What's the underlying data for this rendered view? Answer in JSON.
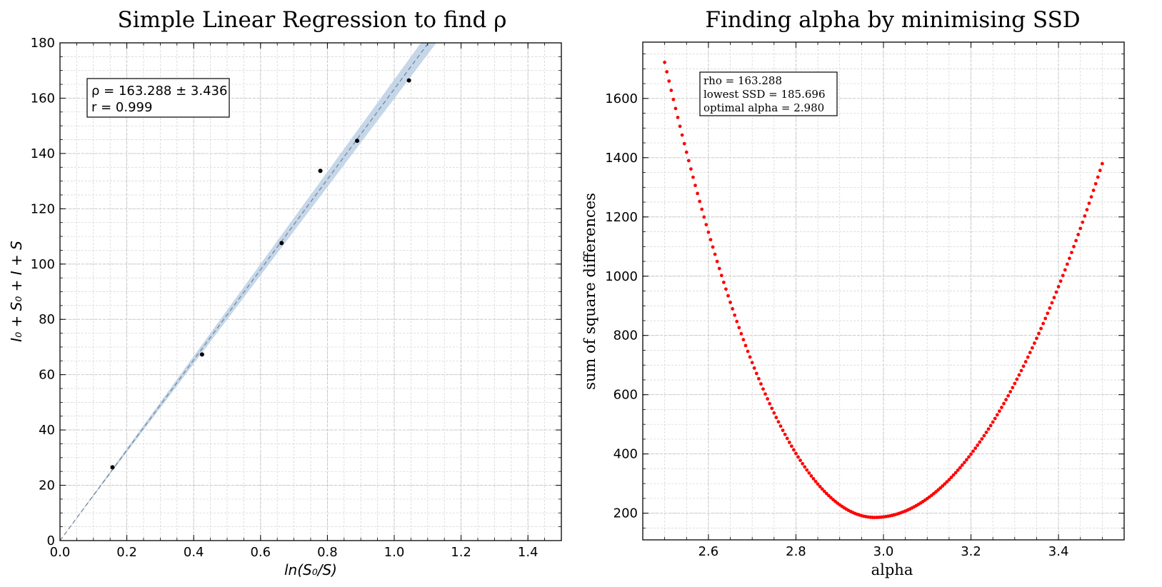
{
  "chart_data": [
    {
      "type": "scatter",
      "title": "Simple Linear Regression to find ρ",
      "xlabel": "ln(S₀/S)",
      "ylabel": "I₀ + S₀ + I + S",
      "xlim": [
        0.0,
        1.5
      ],
      "ylim": [
        0,
        180
      ],
      "xticks": [
        0.0,
        0.2,
        0.4,
        0.6,
        0.8,
        1.0,
        1.2,
        1.4
      ],
      "xtick_labels": [
        "0.0",
        "0.2",
        "0.4",
        "0.6",
        "0.8",
        "1.0",
        "1.2",
        "1.4"
      ],
      "yticks": [
        0,
        20,
        40,
        60,
        80,
        100,
        120,
        140,
        160,
        180
      ],
      "ytick_labels": [
        "0",
        "20",
        "40",
        "60",
        "80",
        "100",
        "120",
        "140",
        "160",
        "180"
      ],
      "grid": true,
      "points": {
        "x": [
          0.157,
          0.425,
          0.663,
          0.779,
          0.889,
          1.044
        ],
        "y": [
          26.5,
          67.3,
          107.6,
          133.7,
          144.6,
          166.4
        ]
      },
      "fit_line": {
        "slope": 163.288,
        "intercept": 0,
        "style": "dashed",
        "color": "#7a8899"
      },
      "confidence_band": {
        "slope_low": 159.852,
        "slope_high": 166.724,
        "color": "#b7cde3"
      },
      "legend": {
        "position": "top-left",
        "line1": "ρ = 163.288 ± 3.436",
        "line2": "r = 0.999"
      }
    },
    {
      "type": "scatter",
      "title": "Finding alpha by minimising SSD",
      "xlabel": "alpha",
      "ylabel": "sum of square differences",
      "xlim": [
        2.45,
        3.55
      ],
      "ylim": [
        110,
        1790
      ],
      "xticks": [
        2.6,
        2.8,
        3.0,
        3.2,
        3.4
      ],
      "xtick_labels": [
        "2.6",
        "2.8",
        "3.0",
        "3.2",
        "3.4"
      ],
      "yticks": [
        200,
        400,
        600,
        800,
        1000,
        1200,
        1400,
        1600
      ],
      "ytick_labels": [
        "200",
        "400",
        "600",
        "800",
        "1000",
        "1200",
        "1400",
        "1600"
      ],
      "grid": true,
      "series": [
        {
          "name": "SSD",
          "color": "#ff0000",
          "alpha_start": 2.5,
          "alpha_end": 3.5,
          "step": 0.005,
          "curve": {
            "vertex_x": 2.98,
            "vertex_y": 185.696,
            "a_left": 6667,
            "a_right": 4416
          }
        }
      ],
      "legend": {
        "position": "top-left",
        "line1": "rho = 163.288",
        "line2": "lowest SSD = 185.696",
        "line3": "optimal alpha = 2.980"
      }
    }
  ]
}
